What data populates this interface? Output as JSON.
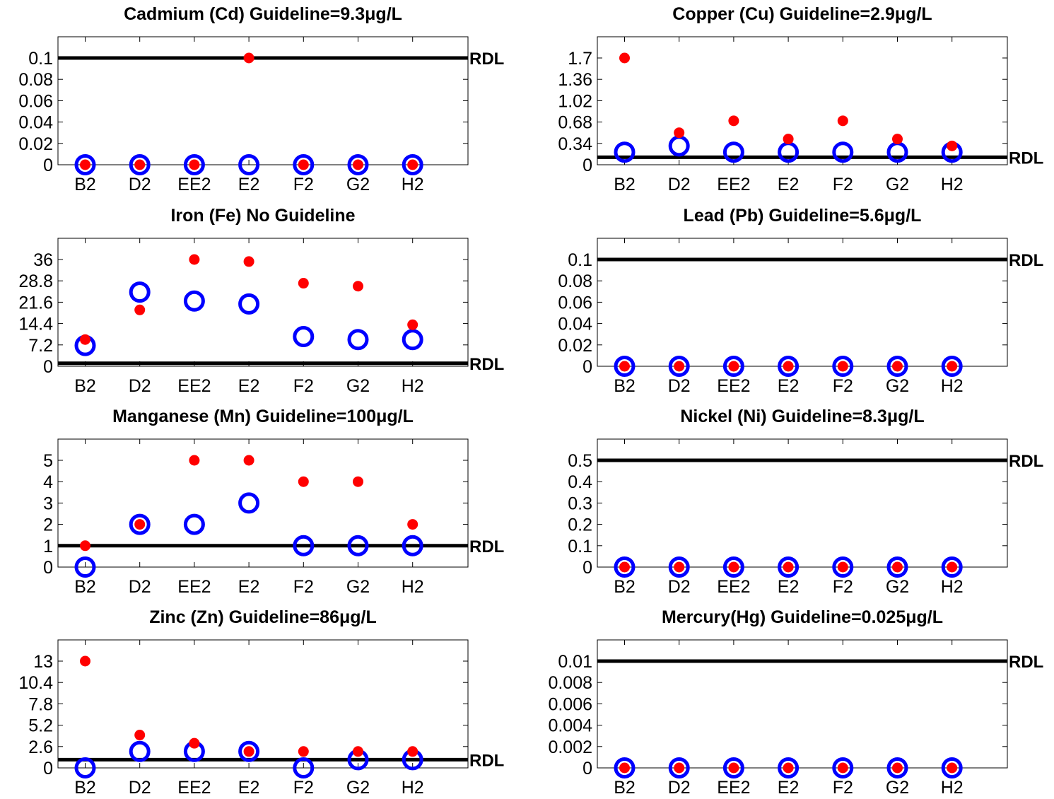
{
  "colors": {
    "filtered": "#0000ff",
    "total": "#ff0000",
    "rdl_line": "#000000",
    "frame": "#000000"
  },
  "chart_data": [
    {
      "type": "scatter",
      "title": "Cadmium (Cd)  Guideline=9.3μg/L",
      "categories": [
        "B2",
        "D2",
        "EE2",
        "E2",
        "F2",
        "G2",
        "H2"
      ],
      "yticks": [
        0,
        0.02,
        0.04,
        0.06,
        0.08,
        0.1
      ],
      "ytick_labels": [
        "0",
        "0.02",
        "0.04",
        "0.06",
        "0.08",
        "0.1"
      ],
      "ylim": [
        0,
        0.1
      ],
      "rdl": 0.1,
      "rdl_label": "RDL",
      "series": [
        {
          "marker": "open-circle",
          "color": "#0000ff",
          "values": [
            0,
            0,
            0,
            0,
            0,
            0,
            0
          ]
        },
        {
          "marker": "filled-dot",
          "color": "#ff0000",
          "values": [
            0,
            0,
            0,
            0.1,
            0,
            0,
            0
          ]
        }
      ]
    },
    {
      "type": "scatter",
      "title": "Copper (Cu)  Guideline=2.9μg/L",
      "categories": [
        "B2",
        "D2",
        "EE2",
        "E2",
        "F2",
        "G2",
        "H2"
      ],
      "yticks": [
        0,
        0.34,
        0.68,
        1.02,
        1.36,
        1.7
      ],
      "ytick_labels": [
        "0",
        "0.34",
        "0.68",
        "1.02",
        "1.36",
        "1.7"
      ],
      "ylim": [
        0,
        1.7
      ],
      "rdl": 0.12,
      "rdl_label": "RDL",
      "series": [
        {
          "marker": "open-circle",
          "color": "#0000ff",
          "values": [
            0.2,
            0.3,
            0.2,
            0.2,
            0.2,
            0.2,
            0.2
          ]
        },
        {
          "marker": "filled-dot",
          "color": "#ff0000",
          "values": [
            1.7,
            0.51,
            0.7,
            0.41,
            0.7,
            0.41,
            0.3
          ]
        }
      ]
    },
    {
      "type": "scatter",
      "title": "Iron (Fe) No Guideline",
      "categories": [
        "B2",
        "D2",
        "EE2",
        "E2",
        "F2",
        "G2",
        "H2"
      ],
      "yticks": [
        0,
        7.2,
        14.4,
        21.6,
        28.8,
        36
      ],
      "ytick_labels": [
        "0",
        "7.2",
        "14.4",
        "21.6",
        "28.8",
        "36"
      ],
      "ylim": [
        0,
        36
      ],
      "rdl": 1,
      "rdl_label": "RDL",
      "series": [
        {
          "marker": "open-circle",
          "color": "#0000ff",
          "values": [
            7,
            25,
            22,
            21,
            10,
            9,
            9
          ]
        },
        {
          "marker": "filled-dot",
          "color": "#ff0000",
          "values": [
            9,
            19,
            36,
            35.3,
            28,
            27,
            14
          ]
        }
      ]
    },
    {
      "type": "scatter",
      "title": "Lead (Pb)  Guideline=5.6μg/L",
      "categories": [
        "B2",
        "D2",
        "EE2",
        "E2",
        "F2",
        "G2",
        "H2"
      ],
      "yticks": [
        0,
        0.02,
        0.04,
        0.06,
        0.08,
        0.1
      ],
      "ytick_labels": [
        "0",
        "0.02",
        "0.04",
        "0.06",
        "0.08",
        "0.1"
      ],
      "ylim": [
        0,
        0.1
      ],
      "rdl": 0.1,
      "rdl_label": "RDL",
      "series": [
        {
          "marker": "open-circle",
          "color": "#0000ff",
          "values": [
            0,
            0,
            0,
            0,
            0,
            0,
            0
          ]
        },
        {
          "marker": "filled-dot",
          "color": "#ff0000",
          "values": [
            0,
            0,
            0,
            0,
            0,
            0,
            0
          ]
        }
      ]
    },
    {
      "type": "scatter",
      "title": "Manganese (Mn)  Guideline=100μg/L",
      "categories": [
        "B2",
        "D2",
        "EE2",
        "E2",
        "F2",
        "G2",
        "H2"
      ],
      "yticks": [
        0,
        1,
        2,
        3,
        4,
        5
      ],
      "ytick_labels": [
        "0",
        "1",
        "2",
        "3",
        "4",
        "5"
      ],
      "ylim": [
        0,
        5
      ],
      "rdl": 1,
      "rdl_label": "RDL",
      "series": [
        {
          "marker": "open-circle",
          "color": "#0000ff",
          "values": [
            0,
            2,
            2,
            3,
            1,
            1,
            1
          ]
        },
        {
          "marker": "filled-dot",
          "color": "#ff0000",
          "values": [
            1,
            2,
            5,
            5,
            4,
            4,
            2
          ]
        }
      ]
    },
    {
      "type": "scatter",
      "title": "Nickel (Ni)  Guideline=8.3μg/L",
      "categories": [
        "B2",
        "D2",
        "EE2",
        "E2",
        "F2",
        "G2",
        "H2"
      ],
      "yticks": [
        0,
        0.1,
        0.2,
        0.3,
        0.4,
        0.5
      ],
      "ytick_labels": [
        "0",
        "0.1",
        "0.2",
        "0.3",
        "0.4",
        "0.5"
      ],
      "ylim": [
        0,
        0.5
      ],
      "rdl": 0.5,
      "rdl_label": "RDL",
      "series": [
        {
          "marker": "open-circle",
          "color": "#0000ff",
          "values": [
            0,
            0,
            0,
            0,
            0,
            0,
            0
          ]
        },
        {
          "marker": "filled-dot",
          "color": "#ff0000",
          "values": [
            0,
            0,
            0,
            0,
            0,
            0,
            0
          ]
        }
      ]
    },
    {
      "type": "scatter",
      "title": "Zinc (Zn)  Guideline=86μg/L",
      "categories": [
        "B2",
        "D2",
        "EE2",
        "E2",
        "F2",
        "G2",
        "H2"
      ],
      "yticks": [
        0,
        2.6,
        5.2,
        7.8,
        10.4,
        13
      ],
      "ytick_labels": [
        "0",
        "2.6",
        "5.2",
        "7.8",
        "10.4",
        "13"
      ],
      "ylim": [
        0,
        13
      ],
      "rdl": 1,
      "rdl_label": "RDL",
      "series": [
        {
          "marker": "open-circle",
          "color": "#0000ff",
          "values": [
            0,
            2,
            2,
            2,
            0,
            1,
            1
          ]
        },
        {
          "marker": "filled-dot",
          "color": "#ff0000",
          "values": [
            13,
            4,
            3,
            2,
            2,
            2,
            2
          ]
        }
      ]
    },
    {
      "type": "scatter",
      "title": "Mercury(Hg)  Guideline=0.025μg/L",
      "categories": [
        "B2",
        "D2",
        "EE2",
        "E2",
        "F2",
        "G2",
        "H2"
      ],
      "yticks": [
        0,
        0.002,
        0.004,
        0.006,
        0.008,
        0.01
      ],
      "ytick_labels": [
        "0",
        "0.002",
        "0.004",
        "0.006",
        "0.008",
        "0.01"
      ],
      "ylim": [
        0,
        0.01
      ],
      "rdl": 0.01,
      "rdl_label": "RDL",
      "series": [
        {
          "marker": "open-circle",
          "color": "#0000ff",
          "values": [
            0,
            0,
            0,
            0,
            0,
            0,
            0
          ]
        },
        {
          "marker": "filled-dot",
          "color": "#ff0000",
          "values": [
            0,
            0,
            0,
            0,
            0,
            0,
            0
          ]
        }
      ]
    }
  ]
}
